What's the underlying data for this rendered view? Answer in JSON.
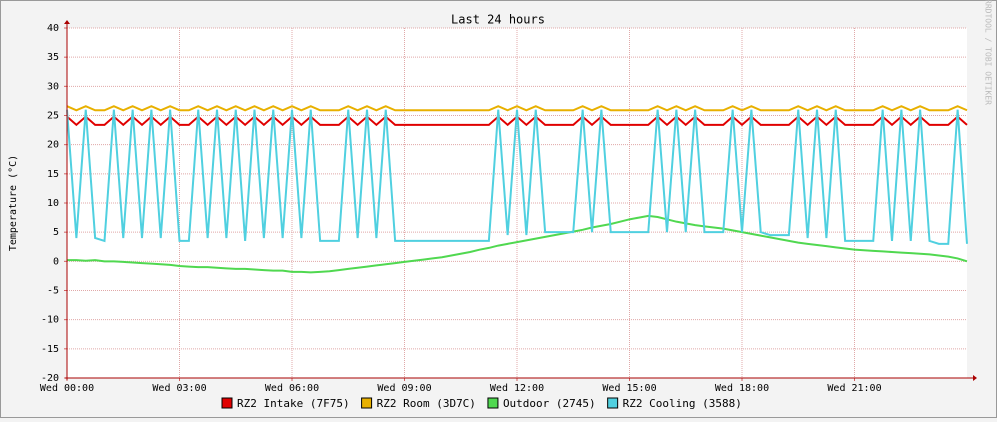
{
  "chart_data": {
    "type": "line",
    "title": "Last 24 hours",
    "y_label": "Temperature (°C)",
    "watermark": "RRDTOOL / TOBI OETIKER",
    "x": [
      0,
      0.25,
      0.5,
      0.75,
      1,
      1.25,
      1.5,
      1.75,
      2,
      2.25,
      2.5,
      2.75,
      3,
      3.25,
      3.5,
      3.75,
      4,
      4.25,
      4.5,
      4.75,
      5,
      5.25,
      5.5,
      5.75,
      6,
      6.25,
      6.5,
      6.75,
      7,
      7.25,
      7.5,
      7.75,
      8,
      8.25,
      8.5,
      8.75,
      9,
      9.25,
      9.5,
      9.75,
      10,
      10.25,
      10.5,
      10.75,
      11,
      11.25,
      11.5,
      11.75,
      12,
      12.25,
      12.5,
      12.75,
      13,
      13.25,
      13.5,
      13.75,
      14,
      14.25,
      14.5,
      14.75,
      15,
      15.25,
      15.5,
      15.75,
      16,
      16.25,
      16.5,
      16.75,
      17,
      17.25,
      17.5,
      17.75,
      18,
      18.25,
      18.5,
      18.75,
      19,
      19.25,
      19.5,
      19.75,
      20,
      20.25,
      20.5,
      20.75,
      21,
      21.25,
      21.5,
      21.75,
      22,
      22.25,
      22.5,
      22.75,
      23,
      23.25,
      23.5,
      23.75,
      24
    ],
    "xlim": [
      0,
      24
    ],
    "xticks": [
      {
        "value": 0,
        "label": "Wed 00:00"
      },
      {
        "value": 3,
        "label": "Wed 03:00"
      },
      {
        "value": 6,
        "label": "Wed 06:00"
      },
      {
        "value": 9,
        "label": "Wed 09:00"
      },
      {
        "value": 12,
        "label": "Wed 12:00"
      },
      {
        "value": 15,
        "label": "Wed 15:00"
      },
      {
        "value": 18,
        "label": "Wed 18:00"
      },
      {
        "value": 21,
        "label": "Wed 21:00"
      }
    ],
    "ylim": [
      -20,
      40
    ],
    "yticks": [
      -20,
      -15,
      -10,
      -5,
      0,
      5,
      10,
      15,
      20,
      25,
      30,
      35,
      40
    ],
    "grid": true,
    "series": [
      {
        "name": "RZ2 Intake (7F75)",
        "color": "#e00000",
        "values": [
          24.8,
          23.4,
          24.8,
          23.4,
          23.4,
          24.8,
          23.4,
          24.8,
          23.4,
          24.8,
          23.4,
          24.8,
          23.4,
          23.4,
          24.8,
          23.4,
          24.8,
          23.4,
          24.8,
          23.4,
          24.8,
          23.4,
          24.8,
          23.4,
          24.8,
          23.4,
          24.8,
          23.4,
          23.4,
          23.4,
          24.8,
          23.4,
          24.8,
          23.4,
          24.8,
          23.4,
          23.4,
          23.4,
          23.4,
          23.4,
          23.4,
          23.4,
          23.4,
          23.4,
          23.4,
          23.4,
          24.8,
          23.4,
          24.8,
          23.4,
          24.8,
          23.4,
          23.4,
          23.4,
          23.4,
          24.8,
          23.4,
          24.8,
          23.4,
          23.4,
          23.4,
          23.4,
          23.4,
          24.8,
          23.4,
          24.8,
          23.4,
          24.8,
          23.4,
          23.4,
          23.4,
          24.8,
          23.4,
          24.8,
          23.4,
          23.4,
          23.4,
          23.4,
          24.8,
          23.4,
          24.8,
          23.4,
          24.8,
          23.4,
          23.4,
          23.4,
          23.4,
          24.8,
          23.4,
          24.8,
          23.4,
          24.8,
          23.4,
          23.4,
          23.4,
          24.8,
          23.4
        ]
      },
      {
        "name": "RZ2 Room (3D7C)",
        "color": "#e8b000",
        "values": [
          26.6,
          25.9,
          26.6,
          25.9,
          25.9,
          26.6,
          25.9,
          26.6,
          25.9,
          26.6,
          25.9,
          26.6,
          25.9,
          25.9,
          26.6,
          25.9,
          26.6,
          25.9,
          26.6,
          25.9,
          26.6,
          25.9,
          26.6,
          25.9,
          26.6,
          25.9,
          26.6,
          25.9,
          25.9,
          25.9,
          26.6,
          25.9,
          26.6,
          25.9,
          26.6,
          25.9,
          25.9,
          25.9,
          25.9,
          25.9,
          25.9,
          25.9,
          25.9,
          25.9,
          25.9,
          25.9,
          26.6,
          25.9,
          26.6,
          25.9,
          26.6,
          25.9,
          25.9,
          25.9,
          25.9,
          26.6,
          25.9,
          26.6,
          25.9,
          25.9,
          25.9,
          25.9,
          25.9,
          26.6,
          25.9,
          26.6,
          25.9,
          26.6,
          25.9,
          25.9,
          25.9,
          26.6,
          25.9,
          26.6,
          25.9,
          25.9,
          25.9,
          25.9,
          26.6,
          25.9,
          26.6,
          25.9,
          26.6,
          25.9,
          25.9,
          25.9,
          25.9,
          26.6,
          25.9,
          26.6,
          25.9,
          26.6,
          25.9,
          25.9,
          25.9,
          26.6,
          25.9
        ]
      },
      {
        "name": "Outdoor (2745)",
        "color": "#50d850",
        "values": [
          0.2,
          0.2,
          0.1,
          0.2,
          0,
          0,
          -0.1,
          -0.2,
          -0.3,
          -0.4,
          -0.5,
          -0.6,
          -0.8,
          -0.9,
          -1.0,
          -1.0,
          -1.1,
          -1.2,
          -1.3,
          -1.3,
          -1.4,
          -1.5,
          -1.6,
          -1.6,
          -1.8,
          -1.8,
          -1.9,
          -1.8,
          -1.7,
          -1.5,
          -1.3,
          -1.1,
          -0.9,
          -0.7,
          -0.5,
          -0.3,
          -0.1,
          0.1,
          0.3,
          0.5,
          0.7,
          1,
          1.3,
          1.6,
          2,
          2.3,
          2.7,
          3,
          3.3,
          3.6,
          3.9,
          4.2,
          4.5,
          4.8,
          5.1,
          5.4,
          5.8,
          6.1,
          6.4,
          6.8,
          7.2,
          7.5,
          7.8,
          7.6,
          7.2,
          6.8,
          6.5,
          6.2,
          6,
          5.8,
          5.6,
          5.3,
          5,
          4.7,
          4.4,
          4.1,
          3.8,
          3.5,
          3.2,
          3,
          2.8,
          2.6,
          2.4,
          2.2,
          2,
          1.9,
          1.8,
          1.7,
          1.6,
          1.5,
          1.4,
          1.3,
          1.2,
          1,
          0.8,
          0.5,
          0
        ]
      },
      {
        "name": "RZ2 Cooling (3588)",
        "color": "#50d0e0",
        "values": [
          26,
          4,
          26,
          4,
          3.5,
          26,
          4,
          26,
          4,
          26,
          4,
          26,
          3.5,
          3.5,
          26,
          4,
          26,
          4,
          26,
          3.5,
          26,
          4,
          26,
          4,
          26,
          4,
          26,
          3.5,
          3.5,
          3.5,
          26,
          4,
          26,
          4,
          26,
          3.5,
          3.5,
          3.5,
          3.5,
          3.5,
          3.5,
          3.5,
          3.5,
          3.5,
          3.5,
          3.5,
          26,
          4.5,
          26,
          4.5,
          26,
          5,
          5,
          5,
          5,
          26,
          5,
          26,
          5,
          5,
          5,
          5,
          5,
          26,
          5,
          26,
          5,
          26,
          5,
          5,
          5,
          26,
          5,
          26,
          5,
          4.5,
          4.5,
          4.5,
          26,
          4,
          26,
          4,
          26,
          3.5,
          3.5,
          3.5,
          3.5,
          26,
          3.5,
          26,
          3.5,
          26,
          3.5,
          3,
          3,
          26,
          3
        ]
      }
    ]
  }
}
